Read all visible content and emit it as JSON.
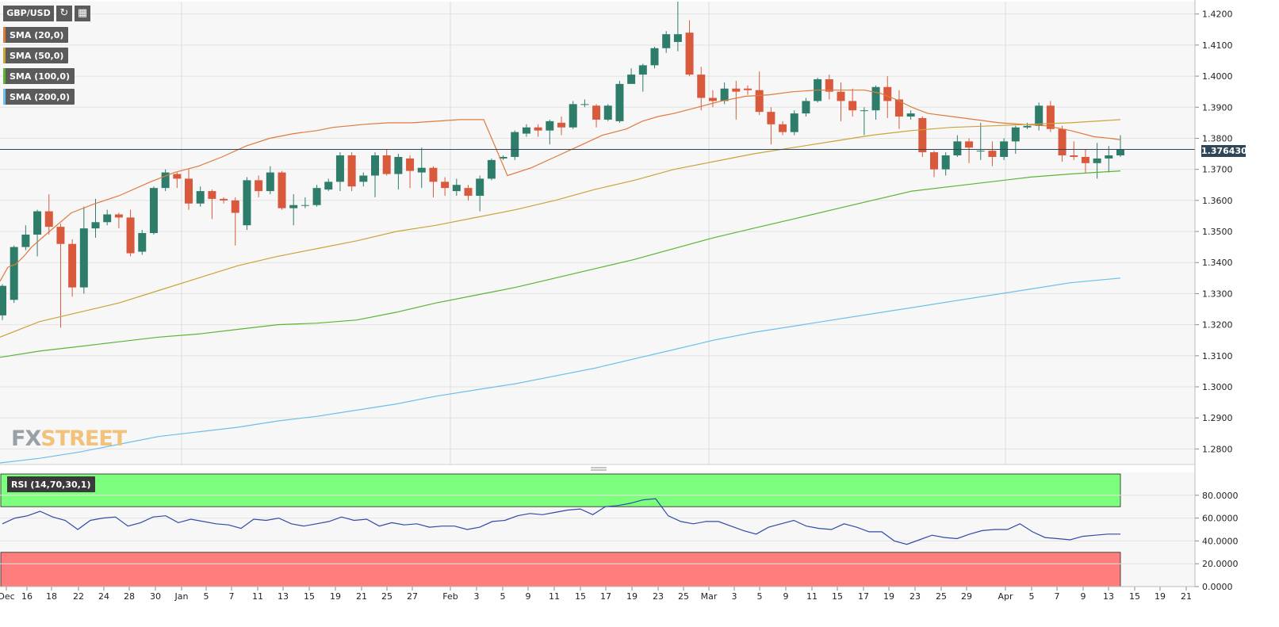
{
  "toolbar": {
    "symbol": "GBP/USD",
    "refresh_icon": "refresh-icon",
    "calendar_icon": "calendar-icon"
  },
  "legend": [
    {
      "label": "SMA (20,0)",
      "color": "#e07a3c"
    },
    {
      "label": "SMA (50,0)",
      "color": "#c9a43a"
    },
    {
      "label": "SMA (100,0)",
      "color": "#5ab534"
    },
    {
      "label": "SMA (200,0)",
      "color": "#6bbfe8"
    }
  ],
  "logo": {
    "part1": "FX",
    "part2": "STREET"
  },
  "last_price": "1.376430",
  "rsi_label": "RSI (14,70,30,1)",
  "colors": {
    "up": "#2e7d6b",
    "down": "#d9593d",
    "rsi_line": "#2f4aa8",
    "overbought": "#7dff7d",
    "oversold": "#ff7d7d"
  },
  "chart_data": {
    "type": "candlestick",
    "title": "GBP/USD",
    "ylim": [
      1.275,
      1.424
    ],
    "y_ticks": [
      "1.2800",
      "1.2900",
      "1.3000",
      "1.3100",
      "1.3200",
      "1.3300",
      "1.3400",
      "1.3500",
      "1.3600",
      "1.3700",
      "1.3800",
      "1.3900",
      "1.4000",
      "1.4100",
      "1.4200"
    ],
    "x_ticks": [
      "Dec",
      "16",
      "18",
      "22",
      "24",
      "28",
      "30",
      "Jan",
      "5",
      "7",
      "11",
      "13",
      "15",
      "19",
      "21",
      "25",
      "27",
      "Feb",
      "3",
      "5",
      "9",
      "11",
      "15",
      "17",
      "19",
      "23",
      "25",
      "Mar",
      "3",
      "5",
      "9",
      "11",
      "15",
      "17",
      "19",
      "23",
      "25",
      "29",
      "Apr",
      "5",
      "7",
      "9",
      "13",
      "15",
      "19",
      "21"
    ],
    "candles": [
      [
        1.323,
        1.3325,
        1.3215,
        1.333
      ],
      [
        1.328,
        1.345,
        1.327,
        1.3455
      ],
      [
        1.345,
        1.349,
        1.344,
        1.352
      ],
      [
        1.349,
        1.3565,
        1.342,
        1.357
      ],
      [
        1.3565,
        1.3515,
        1.349,
        1.362
      ],
      [
        1.3515,
        1.346,
        1.319,
        1.3525
      ],
      [
        1.346,
        1.332,
        1.329,
        1.3475
      ],
      [
        1.332,
        1.351,
        1.33,
        1.358
      ],
      [
        1.351,
        1.353,
        1.348,
        1.3605
      ],
      [
        1.353,
        1.3555,
        1.352,
        1.357
      ],
      [
        1.3555,
        1.3545,
        1.351,
        1.356
      ],
      [
        1.3545,
        1.343,
        1.342,
        1.357
      ],
      [
        1.3435,
        1.3495,
        1.3425,
        1.3505
      ],
      [
        1.3495,
        1.364,
        1.349,
        1.3645
      ],
      [
        1.364,
        1.369,
        1.363,
        1.37
      ],
      [
        1.3685,
        1.367,
        1.364,
        1.369
      ],
      [
        1.367,
        1.359,
        1.357,
        1.37
      ],
      [
        1.359,
        1.363,
        1.358,
        1.3645
      ],
      [
        1.363,
        1.3605,
        1.354,
        1.3635
      ],
      [
        1.3605,
        1.36,
        1.359,
        1.361
      ],
      [
        1.36,
        1.356,
        1.3455,
        1.361
      ],
      [
        1.352,
        1.3665,
        1.3505,
        1.3675
      ],
      [
        1.3665,
        1.363,
        1.361,
        1.368
      ],
      [
        1.363,
        1.369,
        1.362,
        1.371
      ],
      [
        1.369,
        1.3575,
        1.357,
        1.3695
      ],
      [
        1.3575,
        1.3585,
        1.352,
        1.362
      ],
      [
        1.3585,
        1.3585,
        1.3575,
        1.361
      ],
      [
        1.3585,
        1.364,
        1.358,
        1.365
      ],
      [
        1.3635,
        1.366,
        1.363,
        1.367
      ],
      [
        1.366,
        1.3745,
        1.363,
        1.3755
      ],
      [
        1.3745,
        1.3645,
        1.363,
        1.3755
      ],
      [
        1.366,
        1.368,
        1.3645,
        1.369
      ],
      [
        1.368,
        1.3745,
        1.361,
        1.3755
      ],
      [
        1.3745,
        1.3685,
        1.368,
        1.3765
      ],
      [
        1.3685,
        1.374,
        1.3635,
        1.375
      ],
      [
        1.3735,
        1.3695,
        1.364,
        1.3745
      ],
      [
        1.369,
        1.3705,
        1.364,
        1.377
      ],
      [
        1.3705,
        1.366,
        1.361,
        1.371
      ],
      [
        1.366,
        1.364,
        1.3615,
        1.3675
      ],
      [
        1.363,
        1.365,
        1.3615,
        1.367
      ],
      [
        1.364,
        1.3615,
        1.36,
        1.365
      ],
      [
        1.3615,
        1.367,
        1.3565,
        1.368
      ],
      [
        1.367,
        1.373,
        1.3665,
        1.3735
      ],
      [
        1.3735,
        1.374,
        1.373,
        1.3745
      ],
      [
        1.374,
        1.382,
        1.373,
        1.3825
      ],
      [
        1.3815,
        1.3835,
        1.3805,
        1.3845
      ],
      [
        1.3835,
        1.3825,
        1.3805,
        1.3845
      ],
      [
        1.3825,
        1.3855,
        1.378,
        1.386
      ],
      [
        1.385,
        1.3835,
        1.381,
        1.387
      ],
      [
        1.3835,
        1.391,
        1.383,
        1.392
      ],
      [
        1.391,
        1.391,
        1.39,
        1.3925
      ],
      [
        1.3905,
        1.386,
        1.3835,
        1.391
      ],
      [
        1.386,
        1.3905,
        1.3855,
        1.391
      ],
      [
        1.3855,
        1.3975,
        1.385,
        1.3985
      ],
      [
        1.3975,
        1.4005,
        1.3975,
        1.4025
      ],
      [
        1.4005,
        1.4035,
        1.395,
        1.404
      ],
      [
        1.4035,
        1.409,
        1.4025,
        1.4095
      ],
      [
        1.409,
        1.4135,
        1.4075,
        1.4145
      ],
      [
        1.411,
        1.4135,
        1.408,
        1.424
      ],
      [
        1.414,
        1.4005,
        1.4,
        1.418
      ],
      [
        1.4005,
        1.393,
        1.389,
        1.403
      ],
      [
        1.393,
        1.392,
        1.39,
        1.3955
      ],
      [
        1.392,
        1.396,
        1.391,
        1.398
      ],
      [
        1.396,
        1.395,
        1.386,
        1.3985
      ],
      [
        1.396,
        1.3955,
        1.394,
        1.397
      ],
      [
        1.3955,
        1.3885,
        1.3875,
        1.4015
      ],
      [
        1.3885,
        1.3845,
        1.378,
        1.39
      ],
      [
        1.3845,
        1.382,
        1.381,
        1.3855
      ],
      [
        1.382,
        1.388,
        1.381,
        1.389
      ],
      [
        1.388,
        1.392,
        1.387,
        1.393
      ],
      [
        1.392,
        1.399,
        1.3915,
        1.3995
      ],
      [
        1.399,
        1.395,
        1.3925,
        1.4005
      ],
      [
        1.395,
        1.392,
        1.3855,
        1.398
      ],
      [
        1.392,
        1.389,
        1.387,
        1.396
      ],
      [
        1.389,
        1.389,
        1.381,
        1.39
      ],
      [
        1.389,
        1.3965,
        1.386,
        1.397
      ],
      [
        1.3965,
        1.392,
        1.3865,
        1.4
      ],
      [
        1.3925,
        1.387,
        1.383,
        1.3955
      ],
      [
        1.387,
        1.388,
        1.386,
        1.389
      ],
      [
        1.3865,
        1.3755,
        1.374,
        1.387
      ],
      [
        1.3755,
        1.37,
        1.3675,
        1.376
      ],
      [
        1.37,
        1.3745,
        1.368,
        1.3755
      ],
      [
        1.3745,
        1.379,
        1.374,
        1.381
      ],
      [
        1.379,
        1.377,
        1.372,
        1.38
      ],
      [
        1.376,
        1.376,
        1.373,
        1.385
      ],
      [
        1.376,
        1.374,
        1.371,
        1.379
      ],
      [
        1.374,
        1.379,
        1.373,
        1.38
      ],
      [
        1.379,
        1.3835,
        1.375,
        1.384
      ],
      [
        1.3835,
        1.384,
        1.383,
        1.385
      ],
      [
        1.384,
        1.3905,
        1.3825,
        1.3915
      ],
      [
        1.3905,
        1.383,
        1.382,
        1.392
      ],
      [
        1.383,
        1.3745,
        1.3725,
        1.384
      ],
      [
        1.3745,
        1.374,
        1.373,
        1.379
      ],
      [
        1.374,
        1.372,
        1.369,
        1.3765
      ],
      [
        1.372,
        1.3735,
        1.367,
        1.3785
      ],
      [
        1.3735,
        1.3745,
        1.369,
        1.3775
      ],
      [
        1.3745,
        1.3764,
        1.374,
        1.381
      ]
    ],
    "sma": [
      {
        "name": "SMA (20,0)",
        "values": [
          [
            0,
            1.334
          ],
          [
            10,
            1.3385
          ],
          [
            20,
            1.3395
          ],
          [
            30,
            1.342
          ],
          [
            40,
            1.345
          ],
          [
            60,
            1.3495
          ],
          [
            90,
            1.356
          ],
          [
            120,
            1.359
          ],
          [
            150,
            1.3615
          ],
          [
            190,
            1.366
          ],
          [
            220,
            1.369
          ],
          [
            250,
            1.371
          ],
          [
            280,
            1.374
          ],
          [
            310,
            1.3775
          ],
          [
            340,
            1.38
          ],
          [
            370,
            1.3815
          ],
          [
            400,
            1.3825
          ],
          [
            420,
            1.3835
          ],
          [
            440,
            1.384
          ],
          [
            460,
            1.3845
          ],
          [
            490,
            1.385
          ],
          [
            520,
            1.385
          ],
          [
            550,
            1.3855
          ],
          [
            580,
            1.386
          ],
          [
            610,
            1.386
          ],
          [
            640,
            1.368
          ],
          [
            670,
            1.3705
          ],
          [
            700,
            1.374
          ],
          [
            730,
            1.3775
          ],
          [
            760,
            1.381
          ],
          [
            790,
            1.383
          ],
          [
            810,
            1.3855
          ],
          [
            830,
            1.387
          ],
          [
            850,
            1.388
          ],
          [
            880,
            1.39
          ],
          [
            910,
            1.392
          ],
          [
            940,
            1.3935
          ],
          [
            970,
            1.394
          ],
          [
            1000,
            1.395
          ],
          [
            1030,
            1.3955
          ],
          [
            1060,
            1.3955
          ],
          [
            1090,
            1.3955
          ],
          [
            1110,
            1.3945
          ],
          [
            1130,
            1.3925
          ],
          [
            1150,
            1.39
          ],
          [
            1170,
            1.388
          ],
          [
            1200,
            1.387
          ],
          [
            1230,
            1.386
          ],
          [
            1260,
            1.385
          ],
          [
            1290,
            1.3845
          ],
          [
            1320,
            1.384
          ],
          [
            1350,
            1.3825
          ],
          [
            1380,
            1.3805
          ],
          [
            1400,
            1.38
          ],
          [
            1413,
            1.3795
          ]
        ]
      },
      {
        "name": "SMA (50,0)",
        "values": [
          [
            0,
            1.316
          ],
          [
            50,
            1.321
          ],
          [
            100,
            1.324
          ],
          [
            150,
            1.327
          ],
          [
            200,
            1.331
          ],
          [
            250,
            1.335
          ],
          [
            300,
            1.339
          ],
          [
            350,
            1.342
          ],
          [
            400,
            1.3445
          ],
          [
            450,
            1.347
          ],
          [
            500,
            1.35
          ],
          [
            550,
            1.352
          ],
          [
            600,
            1.3545
          ],
          [
            650,
            1.357
          ],
          [
            700,
            1.36
          ],
          [
            750,
            1.3635
          ],
          [
            800,
            1.3665
          ],
          [
            850,
            1.37
          ],
          [
            900,
            1.3725
          ],
          [
            950,
            1.375
          ],
          [
            1000,
            1.377
          ],
          [
            1050,
            1.379
          ],
          [
            1100,
            1.381
          ],
          [
            1150,
            1.3825
          ],
          [
            1200,
            1.3835
          ],
          [
            1250,
            1.384
          ],
          [
            1300,
            1.3845
          ],
          [
            1350,
            1.385
          ],
          [
            1413,
            1.386
          ]
        ]
      },
      {
        "name": "SMA (100,0)",
        "values": [
          [
            0,
            1.3095
          ],
          [
            50,
            1.3115
          ],
          [
            100,
            1.313
          ],
          [
            150,
            1.3145
          ],
          [
            200,
            1.316
          ],
          [
            250,
            1.317
          ],
          [
            300,
            1.3185
          ],
          [
            350,
            1.32
          ],
          [
            400,
            1.3205
          ],
          [
            450,
            1.3215
          ],
          [
            500,
            1.324
          ],
          [
            550,
            1.327
          ],
          [
            600,
            1.3295
          ],
          [
            650,
            1.332
          ],
          [
            700,
            1.335
          ],
          [
            750,
            1.338
          ],
          [
            800,
            1.341
          ],
          [
            850,
            1.3445
          ],
          [
            900,
            1.348
          ],
          [
            950,
            1.351
          ],
          [
            1000,
            1.354
          ],
          [
            1050,
            1.357
          ],
          [
            1100,
            1.36
          ],
          [
            1150,
            1.363
          ],
          [
            1200,
            1.3645
          ],
          [
            1250,
            1.366
          ],
          [
            1300,
            1.3675
          ],
          [
            1350,
            1.3685
          ],
          [
            1413,
            1.3695
          ]
        ]
      },
      {
        "name": "SMA (200,0)",
        "values": [
          [
            0,
            1.2755
          ],
          [
            50,
            1.277
          ],
          [
            100,
            1.279
          ],
          [
            150,
            1.2815
          ],
          [
            200,
            1.284
          ],
          [
            250,
            1.2855
          ],
          [
            300,
            1.287
          ],
          [
            350,
            1.289
          ],
          [
            400,
            1.2905
          ],
          [
            450,
            1.2925
          ],
          [
            500,
            1.2945
          ],
          [
            550,
            1.297
          ],
          [
            600,
            1.299
          ],
          [
            650,
            1.301
          ],
          [
            700,
            1.3035
          ],
          [
            750,
            1.306
          ],
          [
            800,
            1.309
          ],
          [
            850,
            1.312
          ],
          [
            900,
            1.315
          ],
          [
            950,
            1.3175
          ],
          [
            1000,
            1.3195
          ],
          [
            1050,
            1.3215
          ],
          [
            1100,
            1.3235
          ],
          [
            1150,
            1.3255
          ],
          [
            1200,
            1.3275
          ],
          [
            1250,
            1.3295
          ],
          [
            1300,
            1.3315
          ],
          [
            1350,
            1.3335
          ],
          [
            1413,
            1.335
          ]
        ]
      }
    ],
    "rsi": {
      "ylim": [
        0,
        100
      ],
      "y_ticks": [
        "0.0000",
        "20.0000",
        "40.0000",
        "60.0000",
        "80.0000"
      ],
      "overbought": 70,
      "oversold": 30,
      "values": [
        55,
        60,
        62,
        66,
        61,
        58,
        50,
        58,
        60,
        61,
        53,
        56,
        61,
        62,
        56,
        59,
        57,
        55,
        54,
        51,
        59,
        58,
        60,
        55,
        53,
        55,
        57,
        61,
        58,
        59,
        53,
        56,
        54,
        55,
        52,
        53,
        53,
        50,
        52,
        57,
        58,
        62,
        64,
        63,
        65,
        67,
        68,
        63,
        70,
        71,
        73,
        76,
        77,
        62,
        57,
        55,
        57,
        57,
        53,
        49,
        46,
        52,
        55,
        58,
        53,
        51,
        50,
        55,
        52,
        48,
        48,
        40,
        37,
        41,
        45,
        43,
        42,
        46,
        49,
        50,
        50,
        55,
        48,
        43,
        42,
        41,
        44,
        45,
        46,
        46
      ]
    }
  }
}
